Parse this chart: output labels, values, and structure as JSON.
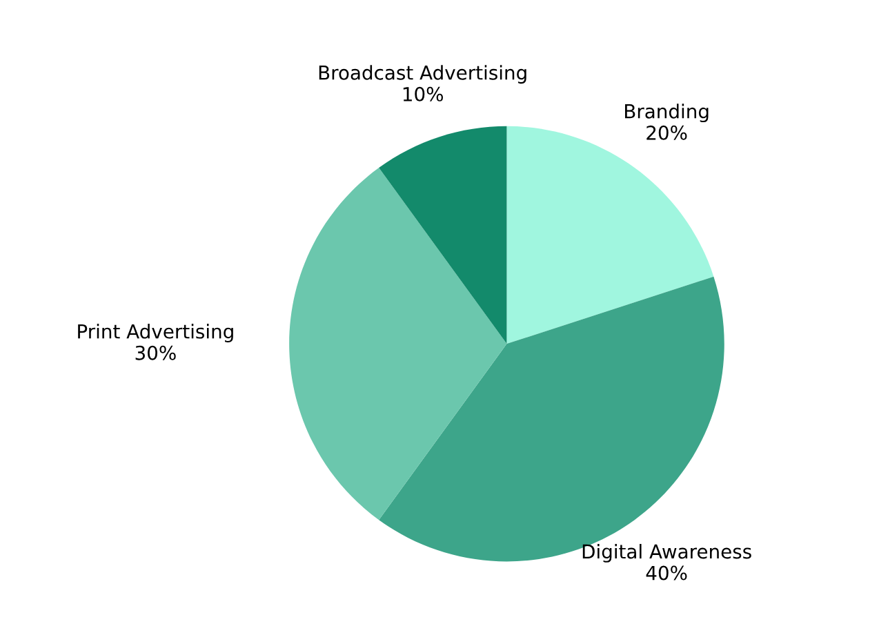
{
  "chart_data": {
    "type": "pie",
    "categories": [
      "Branding",
      "Digital Awareness",
      "Print Advertising",
      "Broadcast Advertising"
    ],
    "values": [
      20,
      40,
      30,
      10
    ],
    "value_labels": [
      "20%",
      "40%",
      "30%",
      "10%"
    ],
    "colors": [
      "#a0f6df",
      "#3da58a",
      "#6bc7ad",
      "#138a6b"
    ]
  }
}
